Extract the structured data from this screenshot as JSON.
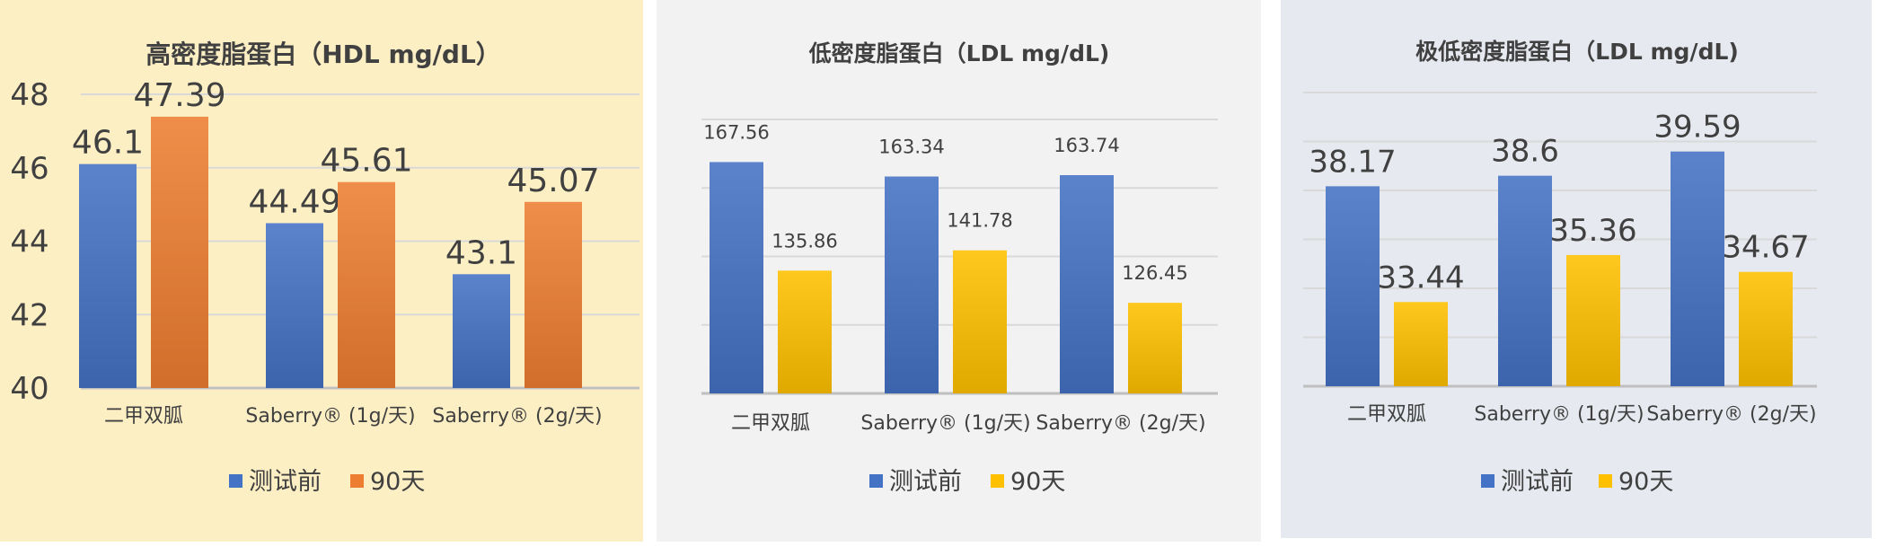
{
  "colors": {
    "before_blue": "#4472c4",
    "after_orange": "#ed7d31",
    "after_yellow": "#ffc000",
    "grid": "#d9d9d9",
    "axis": "#bfbfbf"
  },
  "chart_data": [
    {
      "type": "bar",
      "title": "高密度脂蛋白（HDL mg/dL）",
      "categories": [
        "二甲双胍",
        "Saberry® (1g/天)",
        "Saberry® (2g/天)"
      ],
      "series": [
        {
          "name": "测试前",
          "values": [
            46.1,
            44.49,
            43.1
          ],
          "color": "#4472c4"
        },
        {
          "name": "90天",
          "values": [
            47.39,
            45.61,
            45.07
          ],
          "color": "#ed7d31"
        }
      ],
      "data_labels": [
        [
          "46.1",
          "44.49",
          "43.1"
        ],
        [
          "47.39",
          "45.61",
          "45.07"
        ]
      ],
      "ylim": [
        40,
        48
      ],
      "yticks": [
        40,
        42,
        44,
        46,
        48
      ],
      "ytick_labels": [
        "40",
        "42",
        "44",
        "46",
        "48"
      ],
      "grid": true,
      "legend": "bottom"
    },
    {
      "type": "bar",
      "title": "低密度脂蛋白（LDL mg/dL)",
      "categories": [
        "二甲双胍",
        "Saberry® (1g/天)",
        "Saberry® (2g/天)"
      ],
      "series": [
        {
          "name": "测试前",
          "values": [
            167.56,
            163.34,
            163.74
          ],
          "color": "#4472c4"
        },
        {
          "name": "90天",
          "values": [
            135.86,
            141.78,
            126.45
          ],
          "color": "#ffc000"
        }
      ],
      "data_labels": [
        [
          "167.56",
          "163.34",
          "163.74"
        ],
        [
          "135.86",
          "141.78",
          "126.45"
        ]
      ],
      "ylim": [
        100,
        180
      ],
      "yticks": [
        100,
        120,
        140,
        160,
        180
      ],
      "grid": true,
      "legend": "bottom"
    },
    {
      "type": "bar",
      "title": "极低密度脂蛋白（LDL mg/dL)",
      "categories": [
        "二甲双胍",
        "Saberry® (1g/天)",
        "Saberry® (2g/天)"
      ],
      "series": [
        {
          "name": "测试前",
          "values": [
            38.17,
            38.6,
            39.59
          ],
          "color": "#4472c4"
        },
        {
          "name": "90天",
          "values": [
            33.44,
            35.36,
            34.67
          ],
          "color": "#ffc000"
        }
      ],
      "data_labels": [
        [
          "38.17",
          "38.6",
          "39.59"
        ],
        [
          "33.44",
          "35.36",
          "34.67"
        ]
      ],
      "ylim": [
        30,
        42
      ],
      "yticks": [
        30,
        32,
        34,
        36,
        38,
        40,
        42
      ],
      "grid": true,
      "legend": "bottom"
    }
  ]
}
